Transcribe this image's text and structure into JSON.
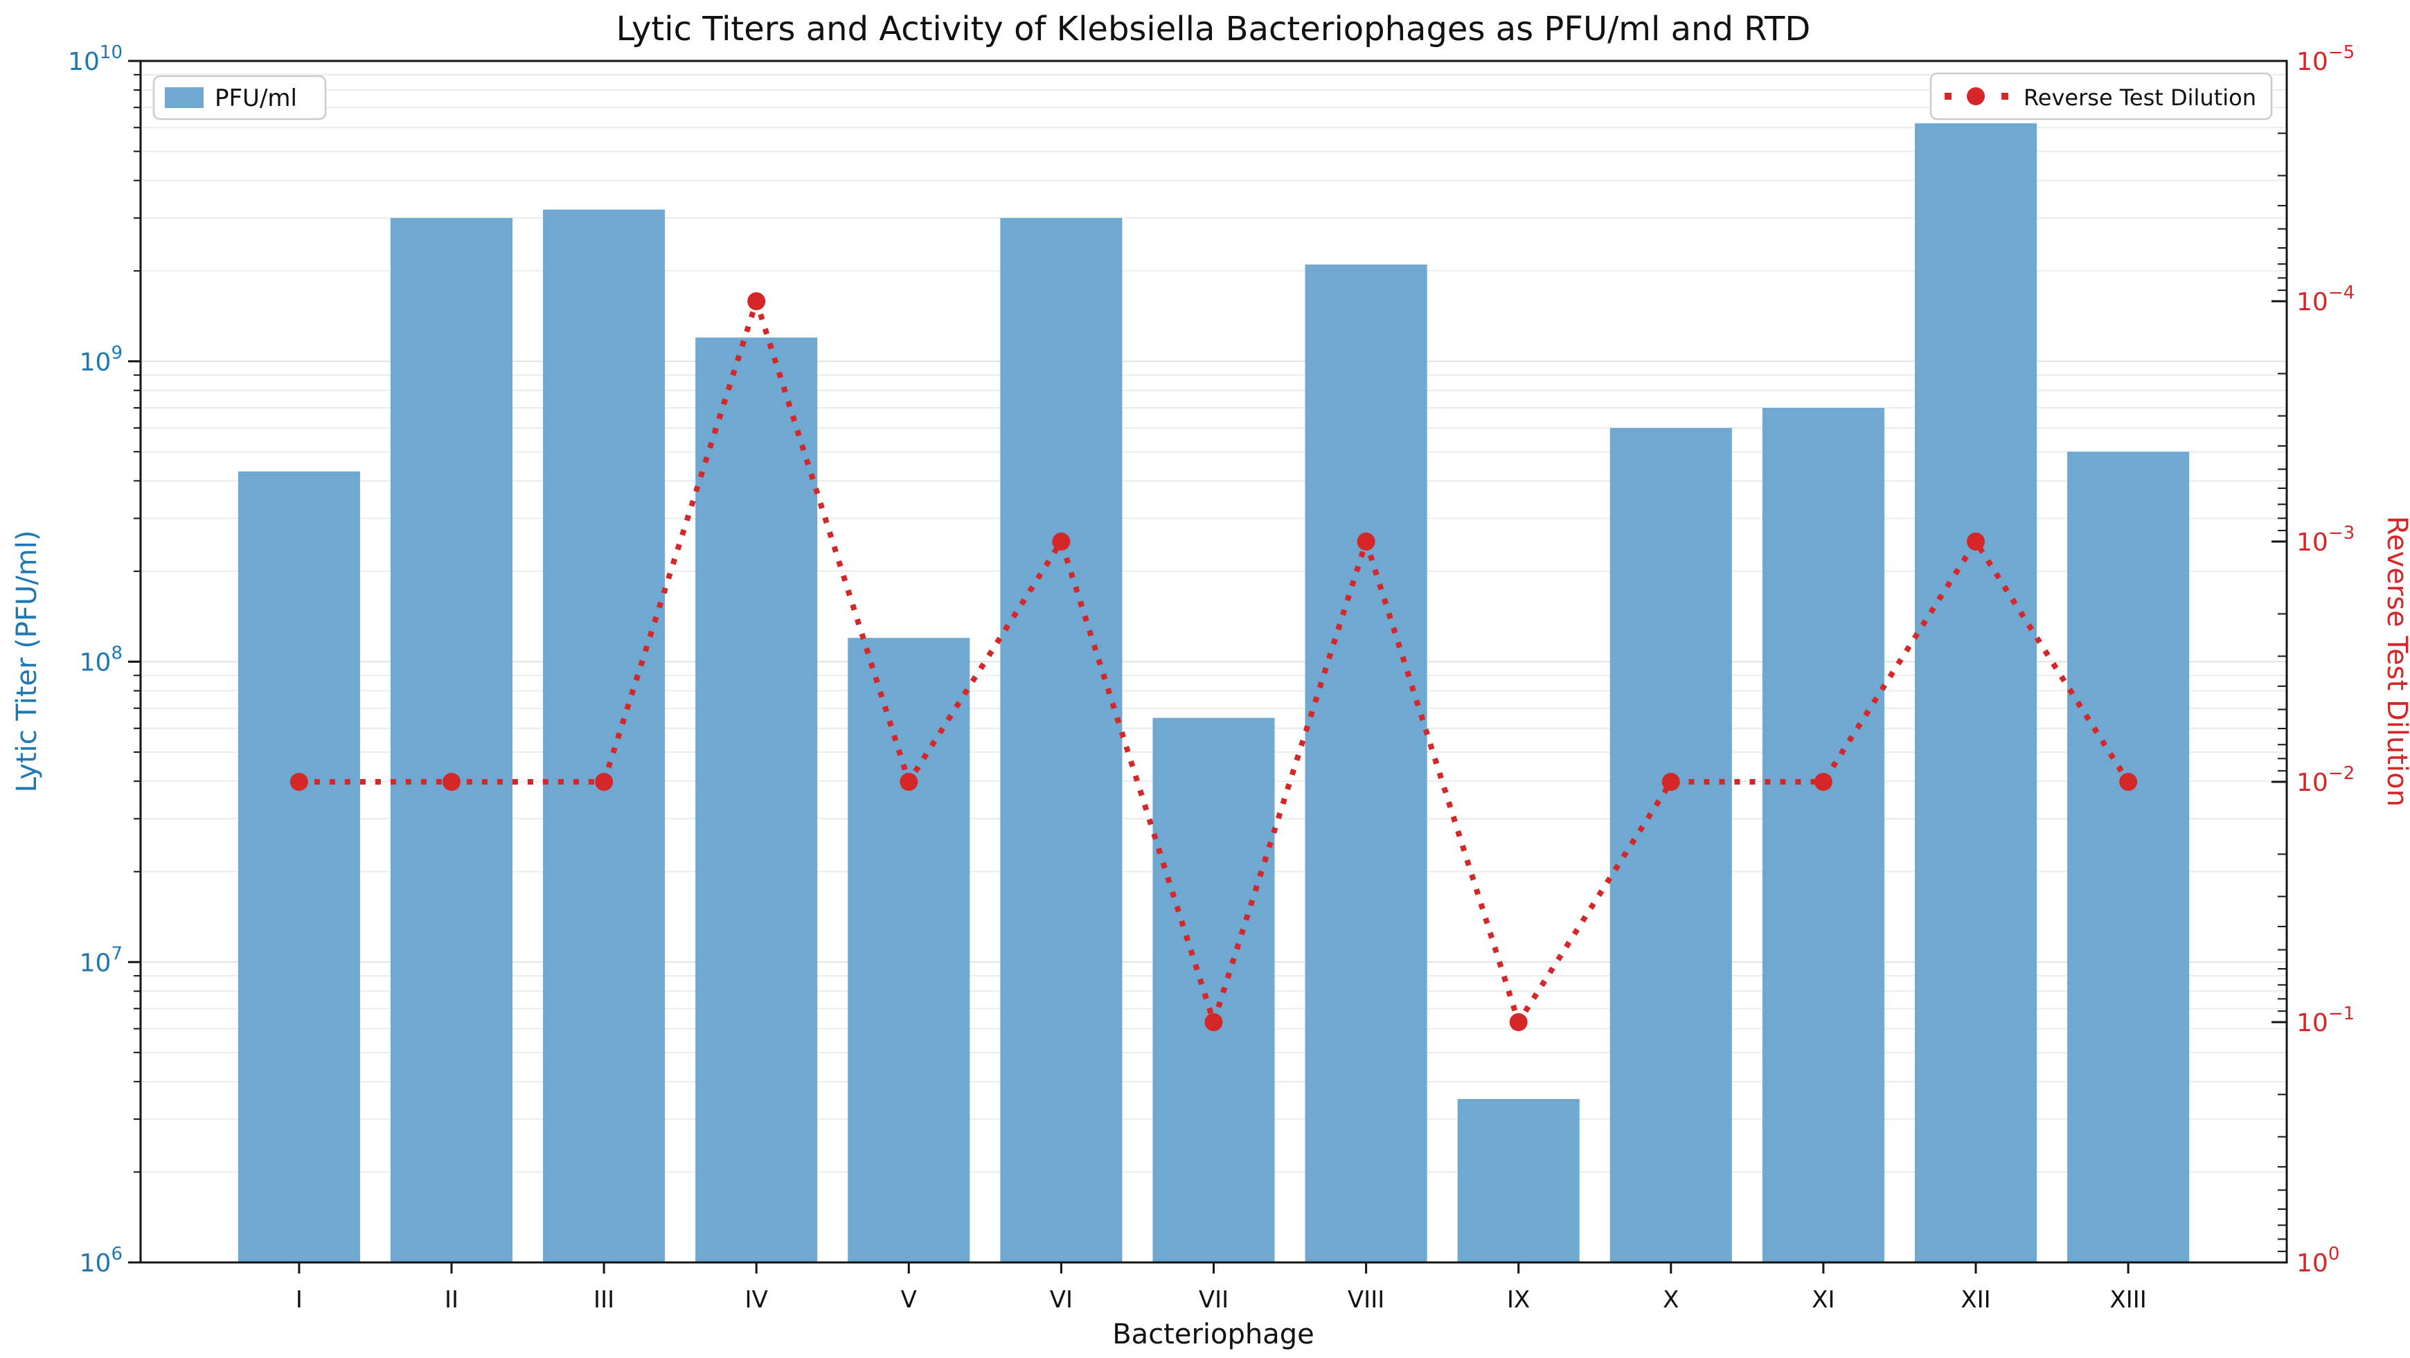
{
  "title": "Lytic Titers and Activity of Klebsiella Bacteriophages as PFU/ml and RTD",
  "axes": {
    "x": {
      "label": "Bacteriophage",
      "tick_labels": [
        "I",
        "II",
        "III",
        "IV",
        "V",
        "VI",
        "VII",
        "VIII",
        "IX",
        "X",
        "XI",
        "XII",
        "XIII"
      ]
    },
    "y_left": {
      "label": "Lytic Titer (PFU/ml)",
      "tick_labels": [
        "10^10",
        "10^9",
        "10^8",
        "10^7",
        "10^6"
      ],
      "log_range": [
        6,
        10
      ],
      "color": "#1f77b4"
    },
    "y_right": {
      "label": "Reverse Test Dilution",
      "tick_labels": [
        "10^-5",
        "10^-4",
        "10^-3",
        "10^-2",
        "10^-1",
        "10^0"
      ],
      "log_range": [
        -5,
        0
      ],
      "inverted": true,
      "color": "#d62728"
    }
  },
  "legend": {
    "pfu": {
      "label": "PFU/ml"
    },
    "rtd": {
      "label": "Reverse Test Dilution"
    }
  },
  "colors": {
    "bar": "#6fa8d0",
    "line": "#d62728",
    "left_axis_text": "#1f77b4",
    "right_axis_text": "#d62728",
    "grid_minor": "#ececec",
    "grid_major": "#e2e2e2",
    "spine": "#141414",
    "legend_border": "#cccccc"
  },
  "chart_data": {
    "type": "bar+line (dual log axes)",
    "title": "Lytic Titers and Activity of Klebsiella Bacteriophages as PFU/ml and RTD",
    "xlabel": "Bacteriophage",
    "ylabel_left": "Lytic Titer (PFU/ml)",
    "ylabel_right": "Reverse Test Dilution",
    "categories": [
      "I",
      "II",
      "III",
      "IV",
      "V",
      "VI",
      "VII",
      "VIII",
      "IX",
      "X",
      "XI",
      "XII",
      "XIII"
    ],
    "series": [
      {
        "name": "PFU/ml",
        "chart": "bar",
        "y_axis": "left",
        "color": "#6fa8d0",
        "values": [
          430000000,
          3000000000,
          3200000000,
          1200000000,
          120000000,
          3000000000,
          65000000,
          2100000000,
          3500000,
          600000000,
          700000000,
          6200000000,
          500000000
        ]
      },
      {
        "name": "Reverse Test Dilution",
        "chart": "line",
        "y_axis": "right",
        "color": "#d62728",
        "line_style": "dotted",
        "marker": "circle",
        "values": [
          0.01,
          0.01,
          0.01,
          0.0001,
          0.01,
          0.001,
          0.1,
          0.001,
          0.1,
          0.01,
          0.01,
          0.001,
          0.01
        ]
      }
    ],
    "ylim_left_log": [
      6,
      10
    ],
    "ylim_right_log": [
      -5,
      0
    ],
    "y_right_orientation": "inverted (10^0 at bottom, 10^-5 at top)",
    "grid": "horizontal log minor+major gridlines, very light gray",
    "legend_positions": {
      "PFU/ml": "upper left",
      "Reverse Test Dilution": "upper right"
    }
  }
}
